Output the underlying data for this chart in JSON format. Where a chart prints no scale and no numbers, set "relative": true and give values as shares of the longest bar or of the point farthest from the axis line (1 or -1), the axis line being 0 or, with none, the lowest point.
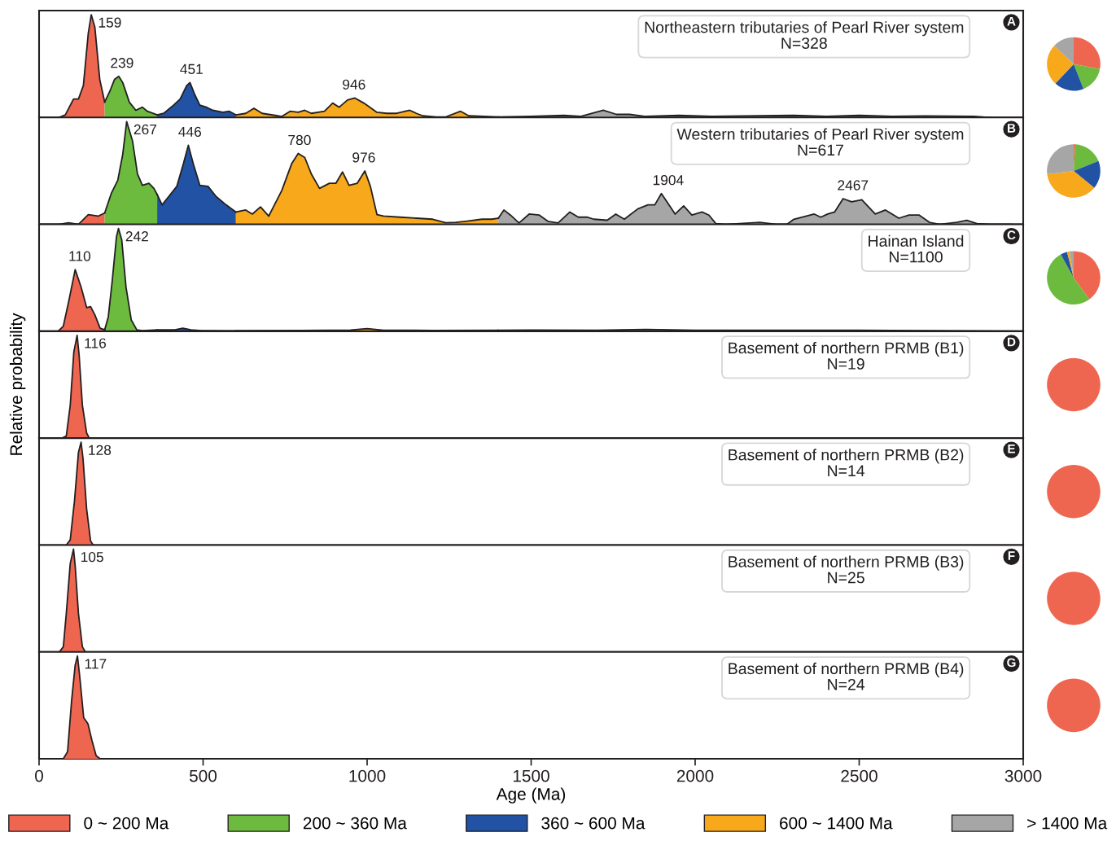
{
  "chart_data": [
    {
      "type": "area",
      "relative": true,
      "title": "Northeastern tributaries of Pearl River system\nN=328",
      "xlim": [
        0,
        3000
      ],
      "tick_labels": false,
      "series": [
        {
          "color": "#ef6650",
          "values": [
            0,
            0.025,
            0.18,
            0.18,
            0.31,
            0.82,
            1,
            0.88,
            0.37,
            0.15
          ],
          "x": [
            60,
            80,
            105,
            120,
            135,
            150,
            159,
            170,
            185,
            200
          ]
        },
        {
          "color": "#6dbb3e",
          "x": [
            200,
            215,
            230,
            243,
            255,
            275,
            295,
            315,
            330,
            360
          ],
          "values": [
            0.15,
            0.25,
            0.37,
            0.4,
            0.34,
            0.15,
            0.07,
            0.1,
            0.06,
            0.025
          ]
        },
        {
          "color": "#2152a3",
          "x": [
            360,
            380,
            410,
            430,
            450,
            460,
            475,
            490,
            510,
            530,
            560,
            580,
            600
          ],
          "values": [
            0.025,
            0.04,
            0.12,
            0.18,
            0.31,
            0.34,
            0.22,
            0.12,
            0.1,
            0.07,
            0.05,
            0.06,
            0.025
          ]
        },
        {
          "color": "#f7a81b",
          "x": [
            600,
            630,
            655,
            680,
            720,
            740,
            765,
            790,
            810,
            830,
            870,
            895,
            915,
            940,
            962,
            990,
            1030,
            1060,
            1090,
            1130,
            1150,
            1170,
            1210,
            1240,
            1285,
            1310,
            1400
          ],
          "values": [
            0.025,
            0.04,
            0.09,
            0.04,
            0.02,
            0.01,
            0.06,
            0.05,
            0.07,
            0.04,
            0.06,
            0.14,
            0.1,
            0.17,
            0.19,
            0.14,
            0.05,
            0.04,
            0.04,
            0.07,
            0.04,
            0.016,
            0.006,
            0.006,
            0.06,
            0.016,
            0.006
          ]
        },
        {
          "color": "#a6a6a6",
          "x": [
            1400,
            1500,
            1600,
            1650,
            1720,
            1760,
            1800,
            1850,
            1950,
            2050,
            2150,
            2300,
            2400,
            2500,
            2600,
            2700,
            2850,
            2900
          ],
          "values": [
            0.006,
            0.01,
            0.02,
            0.01,
            0.07,
            0.03,
            0.03,
            0.01,
            0.02,
            0.01,
            0.015,
            0.02,
            0.01,
            0.02,
            0.01,
            0.015,
            0.01,
            0
          ]
        }
      ],
      "annotations": [
        "A",
        {
          "text": "159",
          "x": 159,
          "y": 1
        },
        {
          "text": "239",
          "x": 239,
          "y": 0.4
        },
        {
          "text": "451",
          "x": 451,
          "y": 0.34
        },
        {
          "text": "946",
          "x": 946,
          "y": 0.19
        }
      ]
    },
    {
      "type": "pie",
      "categories": [
        null,
        null,
        null,
        null,
        null
      ],
      "values": [
        28,
        16,
        18,
        25,
        13
      ],
      "colors": [
        "#ef6650",
        "#6dbb3e",
        "#2152a3",
        "#f7a81b",
        "#a6a6a6"
      ]
    },
    {
      "type": "area",
      "relative": true,
      "title": "Western tributaries of Pearl River system\nN=617",
      "xlim": [
        0,
        3000
      ],
      "tick_labels": false,
      "legend": "bottom",
      "series": [
        {
          "name": "0 ~ 200 Ma",
          "color": "#ef6650",
          "x": [
            0,
            60,
            90,
            120,
            150,
            180,
            200
          ],
          "values": [
            0,
            0,
            0.016,
            0,
            0.095,
            0.08,
            0.11
          ]
        },
        {
          "name": "200 ~ 360 Ma",
          "color": "#6dbb3e",
          "x": [
            200,
            220,
            240,
            255,
            267,
            285,
            300,
            315,
            335,
            350,
            360
          ],
          "values": [
            0.11,
            0.3,
            0.43,
            0.68,
            1,
            0.81,
            0.49,
            0.38,
            0.4,
            0.35,
            0.29
          ]
        },
        {
          "name": "360 ~ 600 Ma",
          "color": "#2152a3",
          "x": [
            360,
            375,
            390,
            420,
            440,
            455,
            470,
            490,
            515,
            540,
            570,
            600
          ],
          "values": [
            0.29,
            0.19,
            0.25,
            0.37,
            0.59,
            0.77,
            0.59,
            0.38,
            0.37,
            0.27,
            0.19,
            0.12
          ]
        },
        {
          "name": "600 ~ 1400 Ma",
          "color": "#f7a81b",
          "x": [
            600,
            630,
            650,
            675,
            700,
            740,
            770,
            790,
            810,
            830,
            855,
            885,
            905,
            925,
            945,
            970,
            993,
            1010,
            1030,
            1050,
            1100,
            1150,
            1200,
            1240,
            1270,
            1300,
            1350,
            1380,
            1400
          ],
          "values": [
            0.12,
            0.14,
            0.1,
            0.17,
            0.08,
            0.33,
            0.59,
            0.69,
            0.65,
            0.49,
            0.35,
            0.4,
            0.4,
            0.51,
            0.38,
            0.4,
            0.52,
            0.37,
            0.095,
            0.08,
            0.07,
            0.06,
            0.05,
            0.016,
            0.02,
            0.03,
            0.05,
            0.05,
            0.06
          ]
        },
        {
          "name": "> 1400 Ma",
          "color": "#a6a6a6",
          "x": [
            1400,
            1417,
            1437,
            1463,
            1494,
            1525,
            1551,
            1582,
            1618,
            1644,
            1670,
            1691,
            1732,
            1758,
            1784,
            1825,
            1856,
            1877,
            1897,
            1918,
            1939,
            1965,
            1990,
            2021,
            2042,
            2063,
            2094,
            2197,
            2249,
            2280,
            2301,
            2363,
            2383,
            2404,
            2425,
            2451,
            2477,
            2508,
            2549,
            2580,
            2621,
            2652,
            2683,
            2714,
            2745,
            2797,
            2828,
            2859,
            2900,
            2963
          ],
          "values": [
            0.06,
            0.14,
            0.09,
            0.013,
            0.1,
            0.09,
            0.03,
            0.013,
            0.12,
            0.07,
            0.07,
            0.05,
            0.04,
            0.1,
            0.05,
            0.15,
            0.19,
            0.19,
            0.3,
            0.2,
            0.1,
            0.18,
            0.09,
            0.12,
            0.09,
            0.007,
            0,
            0.02,
            0,
            0,
            0.05,
            0.1,
            0.07,
            0.1,
            0.12,
            0.25,
            0.22,
            0.24,
            0.1,
            0.14,
            0.06,
            0.09,
            0.09,
            0.02,
            0,
            0.02,
            0.04,
            0.007,
            0,
            0
          ]
        }
      ],
      "annotations": [
        "B",
        {
          "text": "267",
          "x": 267,
          "y": 1
        },
        {
          "text": "446",
          "x": 446,
          "y": 0.77
        },
        {
          "text": "780",
          "x": 780,
          "y": 0.69
        },
        {
          "text": "976",
          "x": 976,
          "y": 0.52
        },
        {
          "text": "1904",
          "x": 1904,
          "y": 0.3
        },
        {
          "text": "2467",
          "x": 2467,
          "y": 0.25
        }
      ]
    },
    {
      "type": "pie",
      "categories": [
        null,
        null,
        null,
        null,
        null
      ],
      "values": [
        1,
        18,
        17,
        37,
        27
      ],
      "colors": [
        "#ef6650",
        "#6dbb3e",
        "#2152a3",
        "#f7a81b",
        "#a6a6a6"
      ]
    },
    {
      "type": "area",
      "relative": true,
      "title": "Hainan Island\nN=1100",
      "xlim": [
        0,
        3000
      ],
      "tick_labels": false,
      "series": [
        {
          "color": "#ef6650",
          "x": [
            58,
            74,
            91,
            110,
            128,
            145,
            157,
            170,
            186,
            200
          ],
          "values": [
            0,
            0.05,
            0.3,
            0.6,
            0.43,
            0.23,
            0.24,
            0.16,
            0.03,
            0.014
          ]
        },
        {
          "color": "#6dbb3e",
          "x": [
            200,
            211,
            223,
            236,
            242,
            252,
            265,
            281,
            298,
            314,
            360
          ],
          "values": [
            0.014,
            0.14,
            0.49,
            0.92,
            1,
            0.89,
            0.43,
            0.11,
            0.014,
            0.005,
            0.014
          ]
        },
        {
          "color": "#2152a3",
          "x": [
            360,
            414,
            438,
            463,
            496,
            600
          ],
          "values": [
            0.014,
            0.014,
            0.03,
            0.014,
            0.005,
            0.003
          ]
        },
        {
          "color": "#f7a81b",
          "x": [
            600,
            800,
            950,
            1000,
            1050,
            1200,
            1400
          ],
          "values": [
            0.006,
            0.008,
            0.012,
            0.025,
            0.01,
            0.008,
            0.01
          ]
        },
        {
          "color": "#a6a6a6",
          "x": [
            1400,
            1500,
            1700,
            1850,
            2000,
            2500,
            3000
          ],
          "values": [
            0.01,
            0.012,
            0.01,
            0.018,
            0.01,
            0.01,
            0
          ]
        }
      ],
      "annotations": [
        "C",
        {
          "text": "110",
          "x": 110,
          "y": 0.6
        },
        {
          "text": "242",
          "x": 242,
          "y": 1
        }
      ]
    },
    {
      "type": "pie",
      "categories": [
        null,
        null,
        null,
        null,
        null
      ],
      "values": [
        40,
        52,
        4,
        1.5,
        2.5
      ],
      "colors": [
        "#ef6650",
        "#6dbb3e",
        "#2152a3",
        "#f7a81b",
        "#a6a6a6"
      ]
    },
    {
      "type": "area",
      "relative": true,
      "title": "Basement of northern PRMB (B1)\nN=19",
      "xlim": [
        0,
        3000
      ],
      "tick_labels": false,
      "ylabel": "Relative probability",
      "series": [
        {
          "color": "#ef6650",
          "x": [
            70,
            83,
            95,
            106,
            116,
            122,
            132,
            145,
            153
          ],
          "values": [
            0,
            0.02,
            0.32,
            0.84,
            1,
            0.81,
            0.32,
            0.05,
            0
          ]
        }
      ],
      "annotations": [
        "D",
        {
          "text": "116",
          "x": 116,
          "y": 1
        }
      ]
    },
    {
      "type": "pie",
      "categories": [
        null
      ],
      "values": [
        100
      ],
      "colors": [
        "#ef6650"
      ]
    },
    {
      "type": "area",
      "relative": true,
      "title": "Basement of northern PRMB (B2)\nN=14",
      "xlim": [
        0,
        3000
      ],
      "tick_labels": false,
      "series": [
        {
          "color": "#ef6650",
          "x": [
            83,
            95,
            108,
            120,
            128,
            134,
            145,
            157,
            165
          ],
          "values": [
            0,
            0.05,
            0.43,
            0.9,
            1,
            0.84,
            0.35,
            0.04,
            0
          ]
        }
      ],
      "annotations": [
        "E",
        {
          "text": "128",
          "x": 128,
          "y": 1
        }
      ]
    },
    {
      "type": "pie",
      "categories": [
        null
      ],
      "values": [
        100
      ],
      "colors": [
        "#ef6650"
      ]
    },
    {
      "type": "area",
      "relative": true,
      "title": "Basement of northern PRMB (B3)\nN=25",
      "xlim": [
        0,
        3000
      ],
      "tick_labels": false,
      "series": [
        {
          "color": "#ef6650",
          "x": [
            62,
            74,
            83,
            95,
            105,
            110,
            120,
            132,
            141
          ],
          "values": [
            0,
            0.05,
            0.375,
            0.86,
            1,
            0.84,
            0.375,
            0.05,
            0
          ]
        }
      ],
      "annotations": [
        "F",
        {
          "text": "105",
          "x": 105,
          "y": 1
        }
      ]
    },
    {
      "type": "pie",
      "categories": [
        null
      ],
      "values": [
        100
      ],
      "colors": [
        "#ef6650"
      ]
    },
    {
      "type": "area",
      "relative": true,
      "title": "Basement of northern PRMB (B4)\nN=24",
      "xlim": [
        0,
        3000
      ],
      "xticks": [
        0,
        500,
        1000,
        1500,
        2000,
        2500,
        3000
      ],
      "tick_labels": "x",
      "xlabel": "Age (Ma)",
      "series": [
        {
          "color": "#ef6650",
          "x": [
            74,
            87,
            99,
            110,
            117,
            124,
            136,
            149,
            161,
            174,
            186
          ],
          "values": [
            0,
            0.07,
            0.56,
            0.91,
            1,
            0.8,
            0.4,
            0.34,
            0.18,
            0.03,
            0
          ]
        }
      ],
      "annotations": [
        "G",
        {
          "text": "117",
          "x": 117,
          "y": 1
        }
      ]
    },
    {
      "type": "pie",
      "categories": [
        null
      ],
      "values": [
        100
      ],
      "colors": [
        "#ef6650"
      ]
    }
  ]
}
